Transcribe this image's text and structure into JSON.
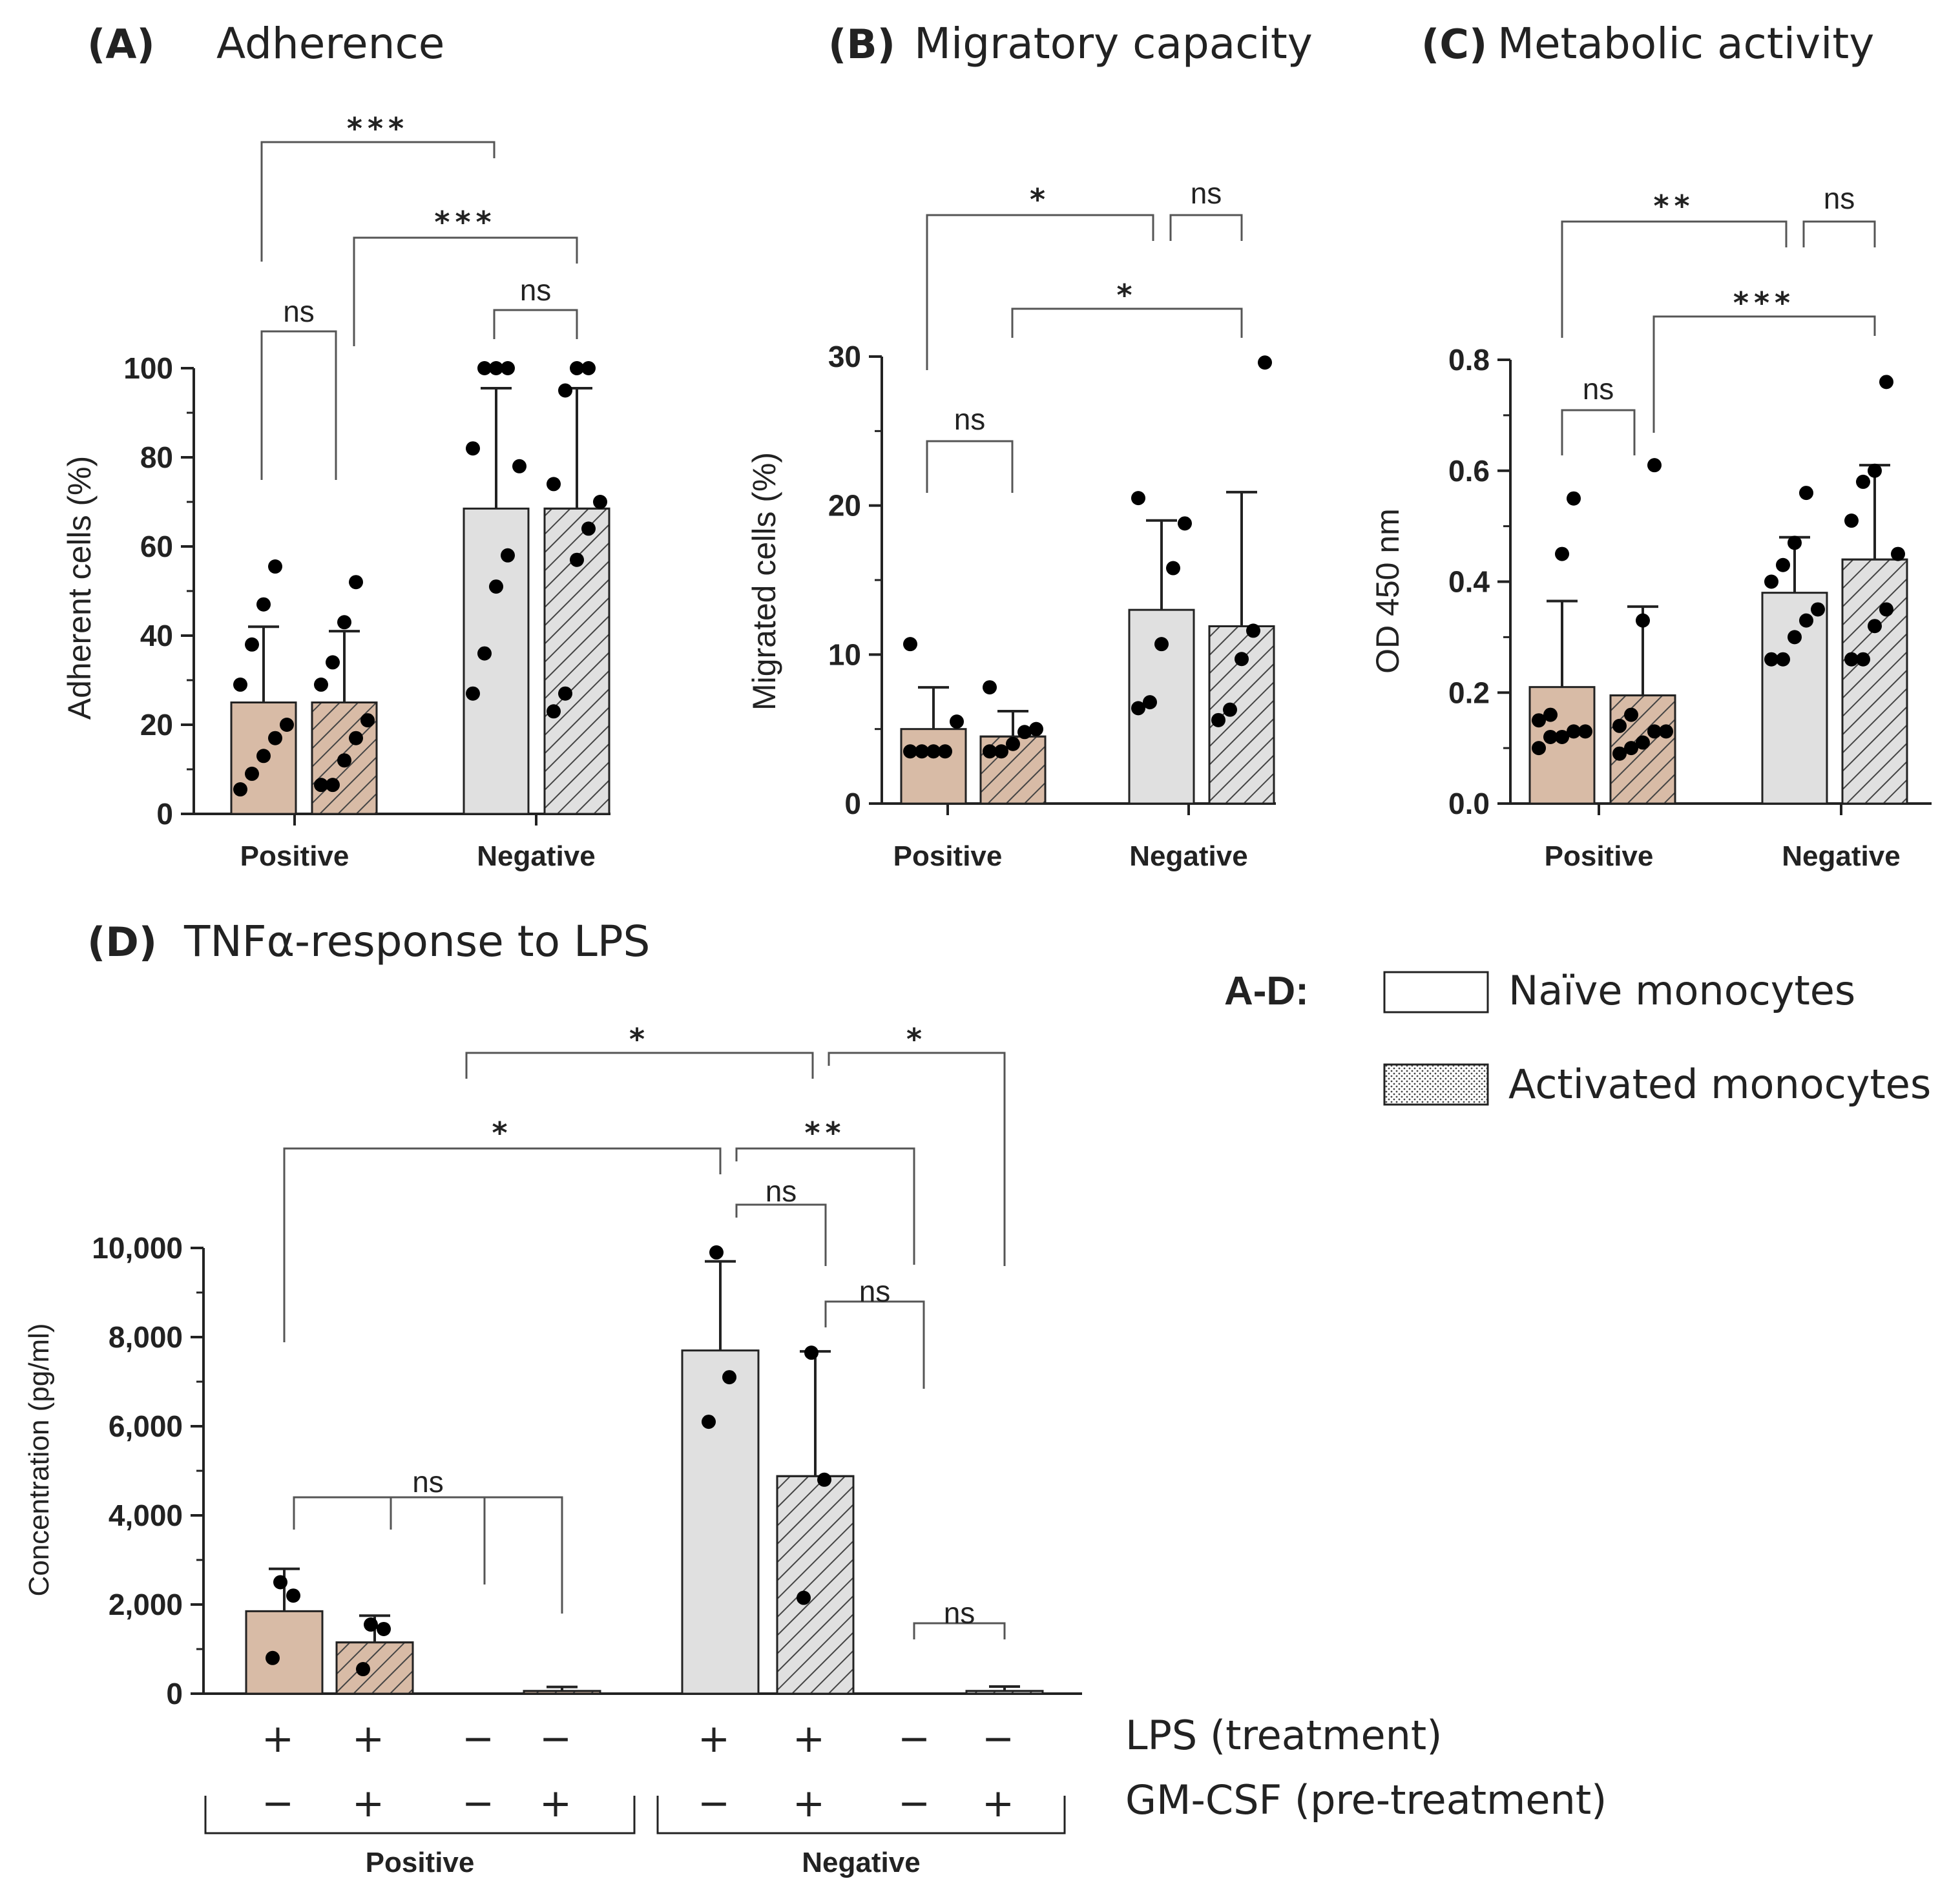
{
  "colors": {
    "positive_fill": "#d8bba6",
    "negative_fill": "#e0e0e0",
    "stroke": "#222222",
    "hatch": "#444444",
    "point": "#000000"
  },
  "legend": {
    "title": "A-D:",
    "items": [
      {
        "label": "Naïve monocytes",
        "style": "plain"
      },
      {
        "label": "Activated monocytes",
        "style": "hatched"
      }
    ]
  },
  "chart_data": [
    {
      "id": "A",
      "type": "bar",
      "panel_label": "(A)",
      "title": "Adherence",
      "ylabel": "Adherent cells (%)",
      "ylim": [
        0,
        100
      ],
      "yticks": [
        0,
        20,
        40,
        60,
        80,
        100
      ],
      "ytick_labels": [
        "0",
        "20",
        "40",
        "60",
        "80",
        "100"
      ],
      "groups": [
        "Positive",
        "Negative"
      ],
      "bars": [
        {
          "group": "Positive",
          "series": "Naïve monocytes",
          "mean": 25,
          "sd": 17,
          "points": [
            5.5,
            9,
            13,
            17,
            20,
            29,
            38,
            47,
            55.5
          ]
        },
        {
          "group": "Positive",
          "series": "Activated monocytes",
          "mean": 25,
          "sd": 16,
          "points": [
            6.5,
            6.5,
            12,
            17,
            21,
            29,
            34,
            43,
            52
          ]
        },
        {
          "group": "Negative",
          "series": "Naïve monocytes",
          "mean": 68.5,
          "sd": 27,
          "points": [
            27,
            36,
            51,
            58,
            78,
            82,
            100,
            100,
            100
          ]
        },
        {
          "group": "Negative",
          "series": "Activated monocytes",
          "mean": 68.5,
          "sd": 27,
          "points": [
            23,
            27,
            57,
            64,
            70,
            74,
            95,
            100,
            100
          ]
        }
      ],
      "significance": [
        {
          "label": "***"
        },
        {
          "label": "***"
        },
        {
          "label": "ns"
        },
        {
          "label": "ns"
        }
      ]
    },
    {
      "id": "B",
      "type": "bar",
      "panel_label": "(B)",
      "title": "Migratory capacity",
      "ylabel": "Migrated cells (%)",
      "ylim": [
        0,
        30
      ],
      "yticks": [
        0,
        10,
        20,
        30
      ],
      "ytick_labels": [
        "0",
        "10",
        "20",
        "30"
      ],
      "groups": [
        "Positive",
        "Negative"
      ],
      "bars": [
        {
          "group": "Positive",
          "series": "Naïve monocytes",
          "mean": 5,
          "sd": 2.8,
          "points": [
            3.5,
            3.5,
            3.5,
            3.5,
            5.5,
            10.7
          ]
        },
        {
          "group": "Positive",
          "series": "Activated monocytes",
          "mean": 4.5,
          "sd": 1.7,
          "points": [
            3.5,
            3.5,
            4,
            4.8,
            5,
            7.8
          ]
        },
        {
          "group": "Negative",
          "series": "Naïve monocytes",
          "mean": 13,
          "sd": 6,
          "points": [
            6.4,
            6.8,
            10.7,
            15.8,
            18.8,
            20.5
          ]
        },
        {
          "group": "Negative",
          "series": "Activated monocytes",
          "mean": 11.9,
          "sd": 9,
          "points": [
            5.6,
            6.3,
            9.7,
            11.6,
            29.6
          ]
        }
      ],
      "significance": [
        {
          "label": "*"
        },
        {
          "label": "ns"
        },
        {
          "label": "*"
        },
        {
          "label": "ns"
        }
      ]
    },
    {
      "id": "C",
      "type": "bar",
      "panel_label": "(C)",
      "title": "Metabolic activity",
      "ylabel": "OD 450 nm",
      "ylim": [
        0,
        0.8
      ],
      "yticks": [
        0,
        0.2,
        0.4,
        0.6,
        0.8
      ],
      "ytick_labels": [
        "0.0",
        "0.2",
        "0.4",
        "0.6",
        "0.8"
      ],
      "groups": [
        "Positive",
        "Negative"
      ],
      "bars": [
        {
          "group": "Positive",
          "series": "Naïve monocytes",
          "mean": 0.21,
          "sd": 0.155,
          "points": [
            0.1,
            0.12,
            0.12,
            0.13,
            0.13,
            0.15,
            0.16,
            0.45,
            0.55
          ]
        },
        {
          "group": "Positive",
          "series": "Activated monocytes",
          "mean": 0.195,
          "sd": 0.16,
          "points": [
            0.09,
            0.1,
            0.11,
            0.13,
            0.13,
            0.14,
            0.16,
            0.33,
            0.61
          ]
        },
        {
          "group": "Negative",
          "series": "Naïve monocytes",
          "mean": 0.38,
          "sd": 0.1,
          "points": [
            0.26,
            0.26,
            0.3,
            0.33,
            0.35,
            0.4,
            0.43,
            0.47,
            0.56
          ]
        },
        {
          "group": "Negative",
          "series": "Activated monocytes",
          "mean": 0.44,
          "sd": 0.17,
          "points": [
            0.26,
            0.26,
            0.32,
            0.35,
            0.45,
            0.51,
            0.58,
            0.6,
            0.76
          ]
        }
      ],
      "significance": [
        {
          "label": "**"
        },
        {
          "label": "ns"
        },
        {
          "label": "***"
        },
        {
          "label": "ns"
        }
      ]
    },
    {
      "id": "D",
      "type": "bar",
      "panel_label": "(D)",
      "title": "TNFα-response to LPS",
      "ylabel": "Concentration (pg/ml)",
      "ylim": [
        0,
        10000
      ],
      "yticks": [
        0,
        2000,
        4000,
        6000,
        8000,
        10000
      ],
      "ytick_labels": [
        "0",
        "2,000",
        "4,000",
        "6,000",
        "8,000",
        "10,000"
      ],
      "groups": [
        "Positive",
        "Negative"
      ],
      "row_labels": {
        "lps": "LPS (treatment)",
        "gmcsf": "GM-CSF (pre-treatment)"
      },
      "bars": [
        {
          "group": "Positive",
          "series": "Naïve monocytes",
          "lps": "+",
          "gmcsf": "−",
          "mean": 1850,
          "sd": 950,
          "points": [
            800,
            2200,
            2500
          ]
        },
        {
          "group": "Positive",
          "series": "Activated monocytes",
          "lps": "+",
          "gmcsf": "+",
          "mean": 1150,
          "sd": 600,
          "points": [
            550,
            1450,
            1550
          ]
        },
        {
          "group": "Positive",
          "series": "Naïve monocytes",
          "lps": "−",
          "gmcsf": "−",
          "mean": 0,
          "sd": 0,
          "points": []
        },
        {
          "group": "Positive",
          "series": "Activated monocytes",
          "lps": "−",
          "gmcsf": "+",
          "mean": 60,
          "sd": 90,
          "points": []
        },
        {
          "group": "Negative",
          "series": "Naïve monocytes",
          "lps": "+",
          "gmcsf": "−",
          "mean": 7700,
          "sd": 2000,
          "points": [
            6100,
            7100,
            9900
          ]
        },
        {
          "group": "Negative",
          "series": "Activated monocytes",
          "lps": "+",
          "gmcsf": "+",
          "mean": 4880,
          "sd": 2800,
          "points": [
            2150,
            4800,
            7650
          ]
        },
        {
          "group": "Negative",
          "series": "Naïve monocytes",
          "lps": "−",
          "gmcsf": "−",
          "mean": 0,
          "sd": 0,
          "points": []
        },
        {
          "group": "Negative",
          "series": "Activated monocytes",
          "lps": "−",
          "gmcsf": "+",
          "mean": 60,
          "sd": 100,
          "points": []
        }
      ],
      "significance": [
        {
          "label": "*"
        },
        {
          "label": "*"
        },
        {
          "label": "*"
        },
        {
          "label": "**"
        },
        {
          "label": "ns"
        },
        {
          "label": "ns"
        },
        {
          "label": "ns"
        },
        {
          "label": "ns"
        }
      ]
    }
  ]
}
